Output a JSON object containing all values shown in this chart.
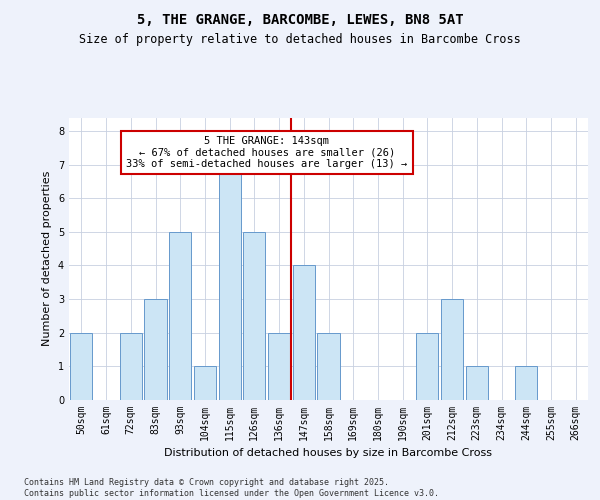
{
  "title1": "5, THE GRANGE, BARCOMBE, LEWES, BN8 5AT",
  "title2": "Size of property relative to detached houses in Barcombe Cross",
  "xlabel": "Distribution of detached houses by size in Barcombe Cross",
  "ylabel": "Number of detached properties",
  "bins": [
    "50sqm",
    "61sqm",
    "72sqm",
    "83sqm",
    "93sqm",
    "104sqm",
    "115sqm",
    "126sqm",
    "136sqm",
    "147sqm",
    "158sqm",
    "169sqm",
    "180sqm",
    "190sqm",
    "201sqm",
    "212sqm",
    "223sqm",
    "234sqm",
    "244sqm",
    "255sqm",
    "266sqm"
  ],
  "values": [
    2,
    0,
    2,
    3,
    5,
    1,
    7,
    5,
    2,
    4,
    2,
    0,
    0,
    0,
    2,
    3,
    1,
    0,
    1,
    0,
    0
  ],
  "bar_color": "#cce5f5",
  "bar_edgecolor": "#6699cc",
  "marker_bin_index": 8.5,
  "marker_color": "#cc0000",
  "annotation_text": "5 THE GRANGE: 143sqm\n← 67% of detached houses are smaller (26)\n33% of semi-detached houses are larger (13) →",
  "annotation_box_edgecolor": "#cc0000",
  "footer": "Contains HM Land Registry data © Crown copyright and database right 2025.\nContains public sector information licensed under the Open Government Licence v3.0.",
  "ylim": [
    0,
    8.4
  ],
  "bg_color": "#eef2fb",
  "plot_bg_color": "#ffffff",
  "title1_fontsize": 10,
  "title2_fontsize": 8.5,
  "ylabel_fontsize": 8,
  "xlabel_fontsize": 8,
  "tick_fontsize": 7,
  "footer_fontsize": 6
}
